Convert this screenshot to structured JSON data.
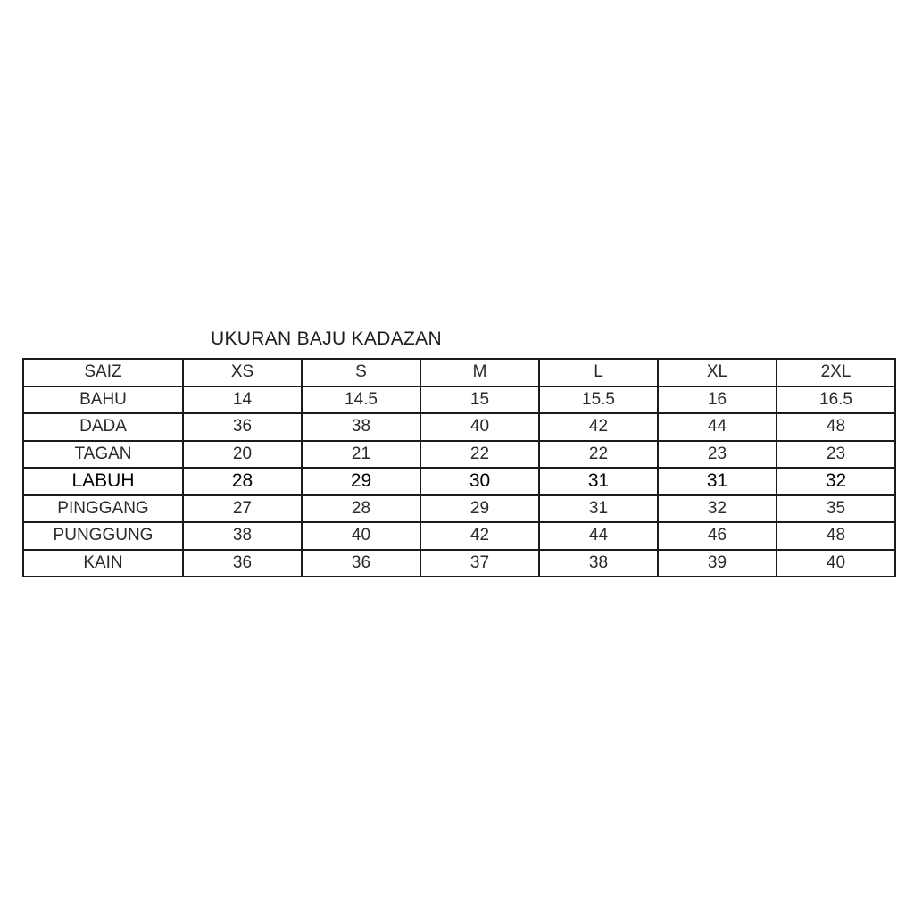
{
  "title": "UKURAN BAJU KADAZAN",
  "table": {
    "header": [
      "SAIZ",
      "XS",
      "S",
      "M",
      "L",
      "XL",
      "2XL"
    ],
    "rows": [
      [
        "BAHU",
        "14",
        "14.5",
        "15",
        "15.5",
        "16",
        "16.5"
      ],
      [
        "DADA",
        "36",
        "38",
        "40",
        "42",
        "44",
        "48"
      ],
      [
        "TAGAN",
        "20",
        "21",
        "22",
        "22",
        "23",
        "23"
      ],
      [
        "LABUH",
        "28",
        "29",
        "30",
        "31",
        "31",
        "32"
      ],
      [
        "PINGGANG",
        "27",
        "28",
        "29",
        "31",
        "32",
        "35"
      ],
      [
        "PUNGGUNG",
        "38",
        "40",
        "42",
        "44",
        "46",
        "48"
      ],
      [
        "KAIN",
        "36",
        "36",
        "37",
        "38",
        "39",
        "40"
      ]
    ]
  }
}
